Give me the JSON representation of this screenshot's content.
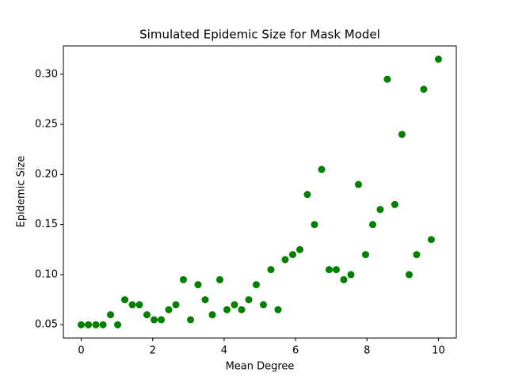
{
  "chart_data": {
    "type": "scatter",
    "title": "Simulated Epidemic Size for Mask Model",
    "x_label": "Mean Degree",
    "y_label": "Epidemic Size",
    "series": [
      {
        "color": "#008000",
        "x": [
          0,
          0.2,
          0.41,
          0.61,
          0.82,
          1.02,
          1.22,
          1.43,
          1.63,
          1.84,
          2.04,
          2.24,
          2.45,
          2.65,
          2.86,
          3.06,
          3.27,
          3.47,
          3.67,
          3.88,
          4.08,
          4.29,
          4.49,
          4.69,
          4.9,
          5.1,
          5.31,
          5.51,
          5.71,
          5.92,
          6.12,
          6.33,
          6.53,
          6.73,
          6.94,
          7.14,
          7.35,
          7.55,
          7.76,
          7.96,
          8.16,
          8.37,
          8.57,
          8.78,
          8.98,
          9.18,
          9.39,
          9.59,
          9.8,
          10
        ],
        "values": [
          0.05,
          0.05,
          0.05,
          0.05,
          0.06,
          0.05,
          0.075,
          0.07,
          0.07,
          0.06,
          0.055,
          0.055,
          0.065,
          0.07,
          0.095,
          0.055,
          0.09,
          0.075,
          0.06,
          0.095,
          0.065,
          0.07,
          0.065,
          0.075,
          0.09,
          0.07,
          0.105,
          0.065,
          0.115,
          0.12,
          0.125,
          0.18,
          0.15,
          0.205,
          0.105,
          0.105,
          0.095,
          0.1,
          0.19,
          0.12,
          0.15,
          0.165,
          0.295,
          0.17,
          0.24,
          0.1,
          0.12,
          0.285,
          0.135,
          0.315
        ]
      }
    ],
    "xlim": [
      -0.5,
      10.5
    ],
    "xticks": [
      0,
      2,
      4,
      6,
      8,
      10
    ],
    "ylim": [
      0.03675,
      0.32825
    ],
    "yticks": [
      0.05,
      {
        "value": 0.1,
        "label": "0.10"
      },
      0.15,
      {
        "value": 0.2,
        "label": "0.20"
      },
      0.25,
      {
        "value": 0.3,
        "label": "0.30"
      }
    ],
    "grid": false
  }
}
